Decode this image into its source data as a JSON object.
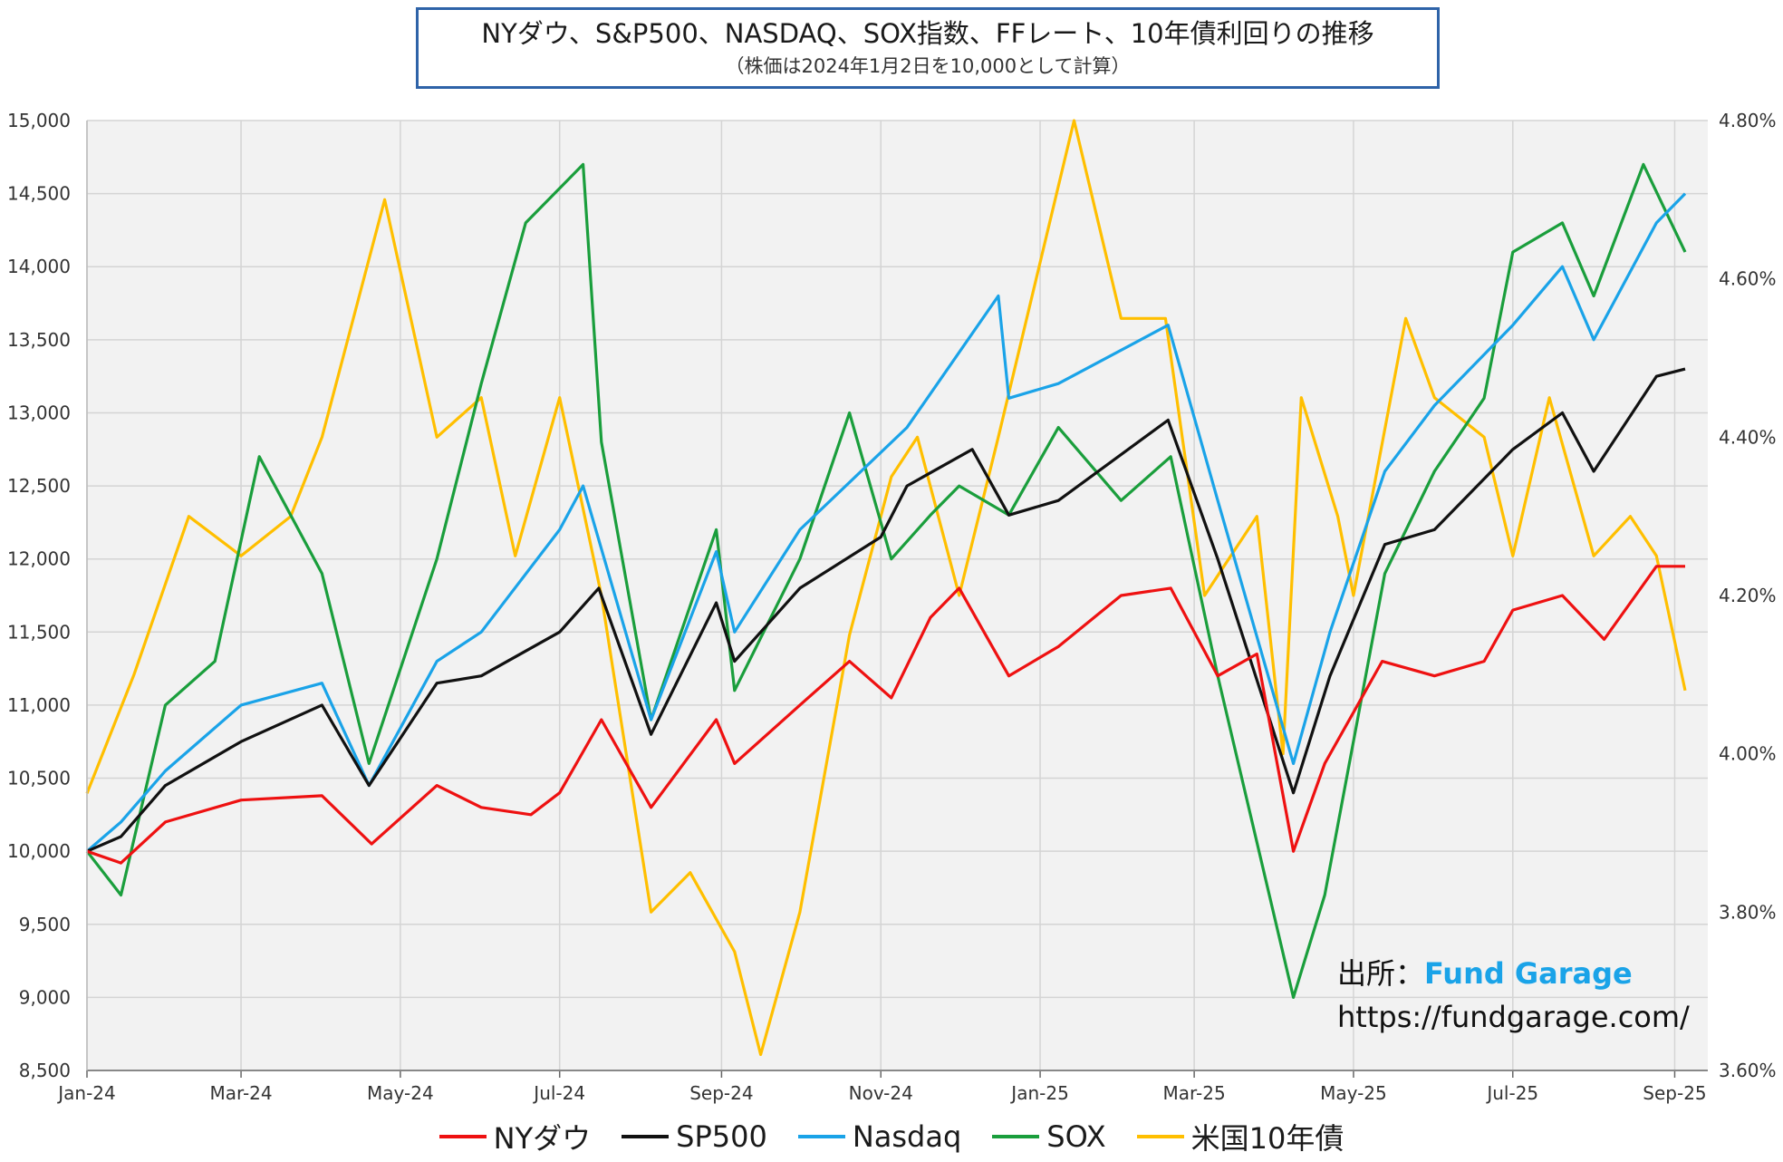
{
  "title": "NYダウ、S&P500、NASDAQ、SOX指数、FFレート、10年債利回りの推移",
  "subtitle": "（株価は2024年1月2日を10,000として計算）",
  "source": {
    "prefix": "出所：",
    "brand": "Fund Garage",
    "url": "https://fundgarage.com/"
  },
  "chart_data": {
    "type": "line",
    "grid": true,
    "legend_position": "bottom",
    "x_ticks": [
      "Jan-24",
      "Mar-24",
      "May-24",
      "Jul-24",
      "Sep-24",
      "Nov-24",
      "Jan-25",
      "Mar-25",
      "May-25",
      "Jul-25",
      "Sep-25"
    ],
    "y_left": {
      "ticks": [
        "15,000",
        "14,500",
        "14,000",
        "13,500",
        "13,000",
        "12,500",
        "12,000",
        "11,500",
        "11,000",
        "10,500",
        "10,000",
        "9,500",
        "9,000",
        "8,500"
      ],
      "range": [
        8500,
        15000
      ]
    },
    "y_right": {
      "ticks": [
        "4.80%",
        "4.60%",
        "4.40%",
        "4.20%",
        "4.00%",
        "3.80%",
        "3.60%"
      ],
      "range": [
        3.6,
        4.8
      ]
    },
    "series": [
      {
        "name": "NYダウ",
        "color": "#ee1111",
        "axis": "left",
        "points": [
          [
            "2024-01-02",
            10000
          ],
          [
            "2024-01-15",
            9920
          ],
          [
            "2024-02-01",
            10200
          ],
          [
            "2024-03-01",
            10350
          ],
          [
            "2024-04-01",
            10380
          ],
          [
            "2024-04-20",
            10050
          ],
          [
            "2024-05-15",
            10450
          ],
          [
            "2024-06-01",
            10300
          ],
          [
            "2024-06-20",
            10250
          ],
          [
            "2024-07-01",
            10400
          ],
          [
            "2024-07-17",
            10900
          ],
          [
            "2024-08-05",
            10300
          ],
          [
            "2024-08-30",
            10900
          ],
          [
            "2024-09-06",
            10600
          ],
          [
            "2024-10-01",
            11000
          ],
          [
            "2024-10-20",
            11300
          ],
          [
            "2024-11-05",
            11050
          ],
          [
            "2024-11-20",
            11600
          ],
          [
            "2024-12-01",
            11800
          ],
          [
            "2024-12-20",
            11200
          ],
          [
            "2025-01-08",
            11400
          ],
          [
            "2025-02-01",
            11750
          ],
          [
            "2025-02-20",
            11800
          ],
          [
            "2025-03-10",
            11200
          ],
          [
            "2025-03-25",
            11350
          ],
          [
            "2025-04-08",
            10000
          ],
          [
            "2025-04-20",
            10600
          ],
          [
            "2025-05-12",
            11300
          ],
          [
            "2025-06-01",
            11200
          ],
          [
            "2025-06-20",
            11300
          ],
          [
            "2025-07-01",
            11650
          ],
          [
            "2025-07-20",
            11750
          ],
          [
            "2025-08-05",
            11450
          ],
          [
            "2025-08-25",
            11950
          ],
          [
            "2025-09-05",
            11950
          ]
        ]
      },
      {
        "name": "SP500",
        "color": "#111111",
        "axis": "left",
        "points": [
          [
            "2024-01-02",
            10000
          ],
          [
            "2024-01-15",
            10100
          ],
          [
            "2024-02-01",
            10450
          ],
          [
            "2024-03-01",
            10750
          ],
          [
            "2024-04-01",
            11000
          ],
          [
            "2024-04-19",
            10450
          ],
          [
            "2024-05-15",
            11150
          ],
          [
            "2024-06-01",
            11200
          ],
          [
            "2024-07-01",
            11500
          ],
          [
            "2024-07-16",
            11800
          ],
          [
            "2024-08-05",
            10800
          ],
          [
            "2024-08-30",
            11700
          ],
          [
            "2024-09-06",
            11300
          ],
          [
            "2024-10-01",
            11800
          ],
          [
            "2024-11-01",
            12150
          ],
          [
            "2024-11-11",
            12500
          ],
          [
            "2024-12-06",
            12750
          ],
          [
            "2024-12-20",
            12300
          ],
          [
            "2025-01-08",
            12400
          ],
          [
            "2025-02-19",
            12950
          ],
          [
            "2025-03-10",
            12000
          ],
          [
            "2025-04-08",
            10400
          ],
          [
            "2025-04-22",
            11200
          ],
          [
            "2025-05-13",
            12100
          ],
          [
            "2025-06-01",
            12200
          ],
          [
            "2025-07-01",
            12750
          ],
          [
            "2025-07-20",
            13000
          ],
          [
            "2025-08-01",
            12600
          ],
          [
            "2025-08-25",
            13250
          ],
          [
            "2025-09-05",
            13300
          ]
        ]
      },
      {
        "name": "Nasdaq",
        "color": "#1aa3e8",
        "axis": "left",
        "points": [
          [
            "2024-01-02",
            10000
          ],
          [
            "2024-01-15",
            10200
          ],
          [
            "2024-02-01",
            10550
          ],
          [
            "2024-03-01",
            11000
          ],
          [
            "2024-04-01",
            11150
          ],
          [
            "2024-04-19",
            10450
          ],
          [
            "2024-05-15",
            11300
          ],
          [
            "2024-06-01",
            11500
          ],
          [
            "2024-07-01",
            12200
          ],
          [
            "2024-07-10",
            12500
          ],
          [
            "2024-08-05",
            10900
          ],
          [
            "2024-08-30",
            12050
          ],
          [
            "2024-09-06",
            11500
          ],
          [
            "2024-10-01",
            12200
          ],
          [
            "2024-11-11",
            12900
          ],
          [
            "2024-12-16",
            13800
          ],
          [
            "2024-12-20",
            13100
          ],
          [
            "2025-01-08",
            13200
          ],
          [
            "2025-02-19",
            13600
          ],
          [
            "2025-03-10",
            12400
          ],
          [
            "2025-04-08",
            10600
          ],
          [
            "2025-04-22",
            11500
          ],
          [
            "2025-05-13",
            12600
          ],
          [
            "2025-06-01",
            13050
          ],
          [
            "2025-07-01",
            13600
          ],
          [
            "2025-07-20",
            14000
          ],
          [
            "2025-08-01",
            13500
          ],
          [
            "2025-08-25",
            14300
          ],
          [
            "2025-09-05",
            14500
          ]
        ]
      },
      {
        "name": "SOX",
        "color": "#1a9e3c",
        "axis": "left",
        "points": [
          [
            "2024-01-02",
            10000
          ],
          [
            "2024-01-15",
            9700
          ],
          [
            "2024-02-01",
            11000
          ],
          [
            "2024-02-20",
            11300
          ],
          [
            "2024-03-08",
            12700
          ],
          [
            "2024-04-01",
            11900
          ],
          [
            "2024-04-19",
            10600
          ],
          [
            "2024-05-15",
            12000
          ],
          [
            "2024-06-01",
            13200
          ],
          [
            "2024-06-18",
            14300
          ],
          [
            "2024-07-10",
            14700
          ],
          [
            "2024-07-17",
            12800
          ],
          [
            "2024-08-05",
            10900
          ],
          [
            "2024-08-30",
            12200
          ],
          [
            "2024-09-06",
            11100
          ],
          [
            "2024-10-01",
            12000
          ],
          [
            "2024-10-20",
            13000
          ],
          [
            "2024-11-05",
            12000
          ],
          [
            "2024-11-20",
            12300
          ],
          [
            "2024-12-01",
            12500
          ],
          [
            "2024-12-20",
            12300
          ],
          [
            "2025-01-08",
            12900
          ],
          [
            "2025-02-01",
            12400
          ],
          [
            "2025-02-20",
            12700
          ],
          [
            "2025-03-10",
            11200
          ],
          [
            "2025-04-08",
            9000
          ],
          [
            "2025-04-20",
            9700
          ],
          [
            "2025-05-13",
            11900
          ],
          [
            "2025-06-01",
            12600
          ],
          [
            "2025-06-20",
            13100
          ],
          [
            "2025-07-01",
            14100
          ],
          [
            "2025-07-20",
            14300
          ],
          [
            "2025-08-01",
            13800
          ],
          [
            "2025-08-20",
            14700
          ],
          [
            "2025-09-05",
            14100
          ]
        ]
      },
      {
        "name": "米国10年債",
        "color": "#ffbf00",
        "axis": "right",
        "points": [
          [
            "2024-01-02",
            3.95
          ],
          [
            "2024-01-20",
            4.1
          ],
          [
            "2024-02-10",
            4.3
          ],
          [
            "2024-03-01",
            4.25
          ],
          [
            "2024-03-20",
            4.3
          ],
          [
            "2024-04-01",
            4.4
          ],
          [
            "2024-04-25",
            4.7
          ],
          [
            "2024-05-15",
            4.4
          ],
          [
            "2024-06-01",
            4.45
          ],
          [
            "2024-06-14",
            4.25
          ],
          [
            "2024-07-01",
            4.45
          ],
          [
            "2024-07-17",
            4.2
          ],
          [
            "2024-08-05",
            3.8
          ],
          [
            "2024-08-20",
            3.85
          ],
          [
            "2024-09-06",
            3.75
          ],
          [
            "2024-09-16",
            3.62
          ],
          [
            "2024-10-01",
            3.8
          ],
          [
            "2024-10-20",
            4.15
          ],
          [
            "2024-11-05",
            4.35
          ],
          [
            "2024-11-15",
            4.4
          ],
          [
            "2024-12-01",
            4.2
          ],
          [
            "2024-12-16",
            4.4
          ],
          [
            "2025-01-14",
            4.8
          ],
          [
            "2025-02-01",
            4.55
          ],
          [
            "2025-02-18",
            4.55
          ],
          [
            "2025-03-05",
            4.2
          ],
          [
            "2025-03-25",
            4.3
          ],
          [
            "2025-04-04",
            4.0
          ],
          [
            "2025-04-11",
            4.45
          ],
          [
            "2025-04-25",
            4.3
          ],
          [
            "2025-05-01",
            4.2
          ],
          [
            "2025-05-21",
            4.55
          ],
          [
            "2025-06-01",
            4.45
          ],
          [
            "2025-06-20",
            4.4
          ],
          [
            "2025-07-01",
            4.25
          ],
          [
            "2025-07-15",
            4.45
          ],
          [
            "2025-08-01",
            4.25
          ],
          [
            "2025-08-15",
            4.3
          ],
          [
            "2025-08-25",
            4.25
          ],
          [
            "2025-09-05",
            4.08
          ]
        ]
      }
    ]
  }
}
